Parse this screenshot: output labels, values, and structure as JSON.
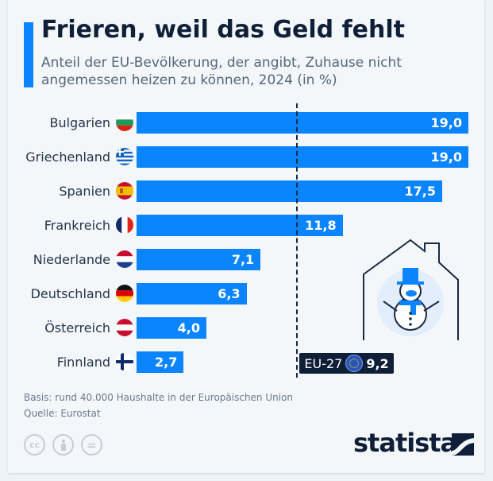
{
  "header": {
    "title": "Frieren, weil das Geld fehlt",
    "subtitle": "Anteil der EU-Bevölkerung, der angibt, Zuhause nicht angemessen heizen zu können, 2024 (in %)"
  },
  "chart_data": {
    "type": "bar",
    "orientation": "horizontal",
    "title": "Frieren, weil das Geld fehlt",
    "subtitle": "Anteil der EU-Bevölkerung, der angibt, Zuhause nicht angemessen heizen zu können, 2024 (in %)",
    "categories": [
      "Bulgarien",
      "Griechenland",
      "Spanien",
      "Frankreich",
      "Niederlande",
      "Deutschland",
      "Österreich",
      "Finnland"
    ],
    "values": [
      19.0,
      19.0,
      17.5,
      11.8,
      7.1,
      6.3,
      4.0,
      2.7
    ],
    "value_labels": [
      "19,0",
      "19,0",
      "17,5",
      "11,8",
      "7,1",
      "6,3",
      "4,0",
      "2,7"
    ],
    "flags": [
      "bulgaria-flag",
      "greece-flag",
      "spain-flag",
      "france-flag",
      "netherlands-flag",
      "germany-flag",
      "austria-flag",
      "finland-flag"
    ],
    "reference_line": {
      "label": "EU-27",
      "value": 9.2,
      "value_label": "9,2",
      "style": "dashed"
    },
    "xlim": [
      0,
      19
    ],
    "grid": false,
    "bar_color": "#0a84ff"
  },
  "footer": {
    "basis": "Basis: rund 40.000 Haushalte in der Europäischen Union",
    "source": "Quelle: Eurostat",
    "license_icons": [
      "cc-icon",
      "attribution-icon",
      "no-derivatives-icon"
    ],
    "cc_text": "cc",
    "nd_text": "="
  },
  "brand": {
    "name": "statista"
  },
  "illustration": "snowman-in-house"
}
